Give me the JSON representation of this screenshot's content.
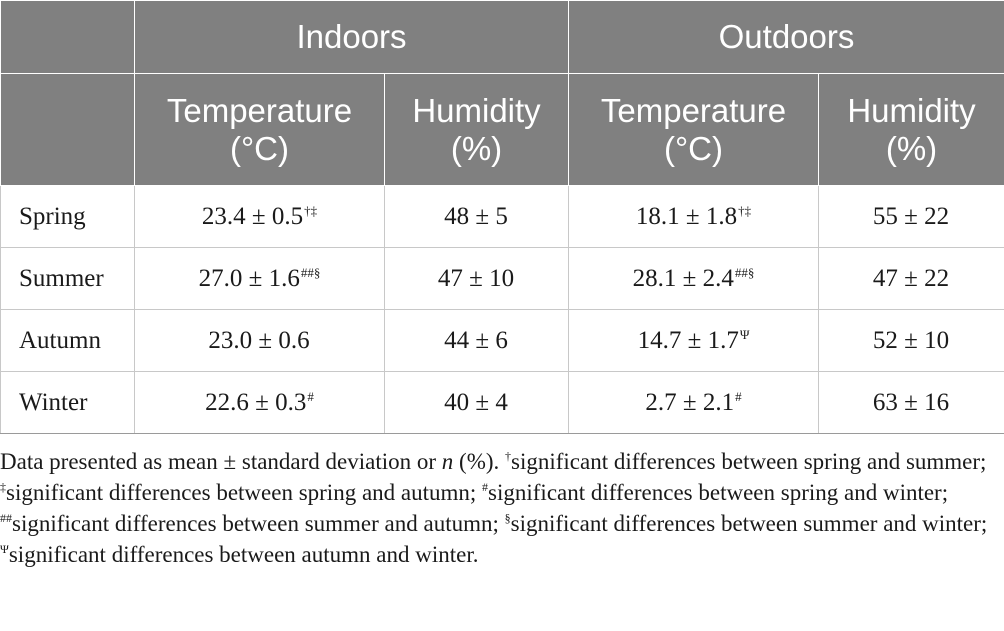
{
  "table": {
    "groups": [
      "Indoors",
      "Outdoors"
    ],
    "subheaders": [
      {
        "line1": "Temperature",
        "line2": "(°C)"
      },
      {
        "line1": "Humidity",
        "line2": "(%)"
      },
      {
        "line1": "Temperature",
        "line2": "(°C)"
      },
      {
        "line1": "Humidity",
        "line2": "(%)"
      }
    ],
    "rows": [
      {
        "label": "Spring",
        "cells": [
          {
            "value": "23.4 ± 0.5",
            "sup": "†‡"
          },
          {
            "value": "48 ± 5",
            "sup": ""
          },
          {
            "value": "18.1 ± 1.8",
            "sup": "†‡"
          },
          {
            "value": "55 ± 22",
            "sup": ""
          }
        ]
      },
      {
        "label": "Summer",
        "cells": [
          {
            "value": "27.0 ± 1.6",
            "sup": "##§"
          },
          {
            "value": "47 ± 10",
            "sup": ""
          },
          {
            "value": "28.1 ± 2.4",
            "sup": "##§"
          },
          {
            "value": "47 ± 22",
            "sup": ""
          }
        ]
      },
      {
        "label": "Autumn",
        "cells": [
          {
            "value": "23.0 ± 0.6",
            "sup": ""
          },
          {
            "value": "44 ± 6",
            "sup": ""
          },
          {
            "value": "14.7 ± 1.7",
            "sup": "Ψ"
          },
          {
            "value": "52 ± 10",
            "sup": ""
          }
        ]
      },
      {
        "label": "Winter",
        "cells": [
          {
            "value": "22.6 ± 0.3",
            "sup": "#"
          },
          {
            "value": "40 ± 4",
            "sup": ""
          },
          {
            "value": "2.7 ± 2.1",
            "sup": "#"
          },
          {
            "value": "63 ± 16",
            "sup": ""
          }
        ]
      }
    ]
  },
  "footnote": {
    "intro_before_n": "Data presented as mean ± standard deviation or ",
    "n": "n",
    "intro_after_n": " (%). ",
    "items": [
      {
        "mark": "†",
        "text": "significant differences between spring and summer; "
      },
      {
        "mark": "‡",
        "text": "significant differences between spring and autumn; "
      },
      {
        "mark": "#",
        "text": "significant differences between spring and winter; "
      },
      {
        "mark": "##",
        "text": "significant differences between summer and autumn; "
      },
      {
        "mark": "§",
        "text": "significant differences between summer and winter; "
      },
      {
        "mark": "Ψ",
        "text": "significant differences between autumn and winter."
      }
    ]
  }
}
